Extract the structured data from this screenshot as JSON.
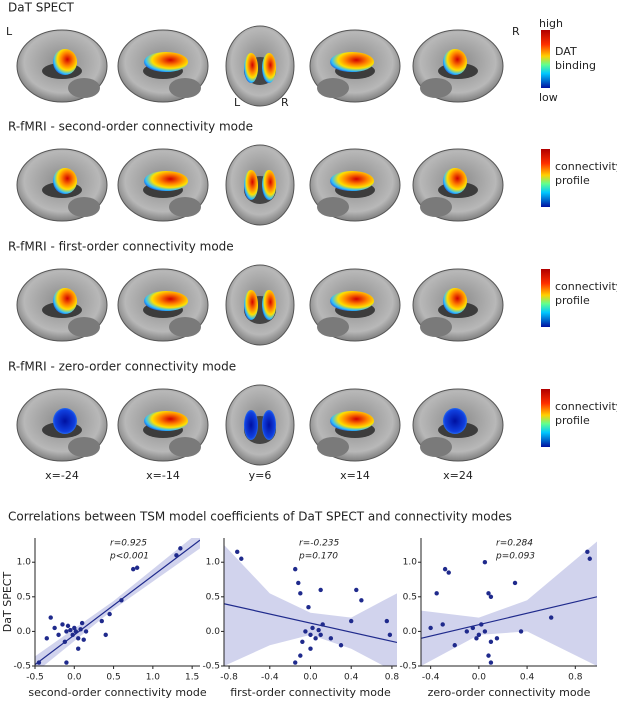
{
  "figure": {
    "rows": [
      {
        "title": "DaT SPECT",
        "colorbar": {
          "high": "high",
          "label": [
            "DAT",
            "binding"
          ],
          "low": "low"
        }
      },
      {
        "title": "R-fMRI - second-order connectivity mode",
        "colorbar": {
          "label": [
            "connectivity",
            "profile"
          ]
        }
      },
      {
        "title": "R-fMRI - first-order connectivity mode",
        "colorbar": {
          "label": [
            "connectivity",
            "profile"
          ]
        }
      },
      {
        "title": "R-fMRI - zero-order connectivity mode",
        "colorbar": {
          "label": [
            "connectivity",
            "profile"
          ]
        }
      }
    ],
    "hemisphere_labels": [
      "L",
      "R"
    ],
    "coronal_labels": [
      "L",
      "R"
    ],
    "slice_labels": [
      "x=-24",
      "x=-14",
      "y=6",
      "x=14",
      "x=24"
    ],
    "section_title": "Correlations between TSM model coefficients of DaT SPECT and connectivity modes"
  },
  "chart_data": [
    {
      "type": "scatter",
      "color": "#1f2a8c",
      "band_color": "#c5c8e8",
      "annotation": [
        "r=0.925",
        "p<0.001"
      ],
      "xlabel": "second-order connectivity mode",
      "ylabel": "DaT SPECT",
      "xlim": [
        -0.5,
        1.6
      ],
      "ylim": [
        -0.5,
        1.35
      ],
      "xticks": [
        -0.5,
        {
          "value": 0,
          "label": "0.0"
        },
        0.5,
        {
          "value": 1,
          "label": "1.0"
        },
        1.5
      ],
      "yticks": [
        -0.5,
        {
          "value": 0,
          "label": "0.0"
        },
        0.5,
        {
          "value": 1,
          "label": "1.0"
        }
      ],
      "x": [
        -0.45,
        -0.35,
        -0.25,
        -0.2,
        -0.15,
        -0.12,
        -0.1,
        -0.05,
        -0.02,
        0.0,
        0.02,
        0.05,
        0.08,
        0.1,
        0.12,
        -0.1,
        0.05,
        0.35,
        0.4,
        0.45,
        0.6,
        0.75,
        0.8,
        1.3,
        1.35,
        -0.3,
        0.15,
        -0.08
      ],
      "y": [
        -0.45,
        -0.1,
        0.05,
        -0.05,
        0.1,
        -0.15,
        0.0,
        0.02,
        -0.05,
        0.05,
        0.0,
        -0.1,
        0.03,
        0.12,
        -0.12,
        -0.45,
        -0.25,
        0.15,
        -0.05,
        0.25,
        0.45,
        0.9,
        0.92,
        1.1,
        1.2,
        0.2,
        0.0,
        0.08
      ],
      "fit": {
        "x": [
          -0.5,
          1.6
        ],
        "y": [
          -0.48,
          1.32
        ]
      },
      "band": {
        "x": [
          -0.5,
          0.5,
          1.6
        ],
        "lower": [
          -0.6,
          0.32,
          1.2
        ],
        "upper": [
          -0.36,
          0.44,
          1.45
        ]
      }
    },
    {
      "type": "scatter",
      "color": "#1f2a8c",
      "band_color": "#c5c8e8",
      "annotation": [
        "r=-0.235",
        "p=0.170"
      ],
      "xlabel": "first-order connectivity mode",
      "xlim": [
        -0.85,
        0.85
      ],
      "ylim": [
        -0.5,
        1.35
      ],
      "xticks": [
        -0.8,
        -0.4,
        {
          "value": 0,
          "label": "0.0"
        },
        0.4,
        0.8
      ],
      "yticks": [
        -0.5,
        {
          "value": 0,
          "label": "0.0"
        },
        0.5,
        {
          "value": 1,
          "label": "1.0"
        }
      ],
      "x": [
        -0.72,
        -0.68,
        -0.15,
        -0.12,
        -0.1,
        0.1,
        0.45,
        0.5,
        -0.02,
        -0.05,
        0.0,
        0.02,
        0.05,
        0.08,
        0.1,
        0.12,
        -0.08,
        0.0,
        -0.15,
        -0.1,
        0.2,
        0.4,
        0.75,
        0.78,
        0.3
      ],
      "y": [
        1.15,
        1.05,
        0.9,
        0.7,
        0.55,
        0.6,
        0.6,
        0.45,
        0.35,
        0.0,
        -0.05,
        0.05,
        -0.1,
        0.02,
        -0.05,
        0.1,
        -0.15,
        -0.25,
        -0.45,
        -0.35,
        -0.1,
        0.15,
        0.15,
        -0.05,
        -0.2
      ],
      "fit": {
        "x": [
          -0.85,
          0.85
        ],
        "y": [
          0.4,
          -0.16
        ]
      },
      "band": {
        "x": [
          -0.85,
          -0.4,
          0.0,
          0.4,
          0.85
        ],
        "lower": [
          -0.5,
          -0.2,
          -0.05,
          -0.25,
          -0.6
        ],
        "upper": [
          1.25,
          0.55,
          0.27,
          0.2,
          0.55
        ]
      }
    },
    {
      "type": "scatter",
      "color": "#1f2a8c",
      "band_color": "#c5c8e8",
      "annotation": [
        "r=0.284",
        "p=0.093"
      ],
      "xlabel": "zero-order connectivity mode",
      "xlim": [
        -0.48,
        0.98
      ],
      "ylim": [
        -0.5,
        1.35
      ],
      "xticks": [
        -0.4,
        {
          "value": 0,
          "label": "0.0"
        },
        0.4,
        0.8
      ],
      "yticks": [
        -0.5,
        {
          "value": 0,
          "label": "0.0"
        },
        0.5,
        {
          "value": 1,
          "label": "1.0"
        }
      ],
      "x": [
        -0.28,
        -0.25,
        -0.35,
        0.05,
        0.08,
        0.1,
        0.3,
        0.9,
        0.92,
        -0.1,
        -0.05,
        0.0,
        0.02,
        0.05,
        -0.02,
        0.1,
        0.08,
        0.1,
        -0.2,
        -0.4,
        -0.3,
        0.6,
        0.35,
        0.15
      ],
      "y": [
        0.9,
        0.85,
        0.55,
        1.0,
        0.55,
        0.5,
        0.7,
        1.15,
        1.05,
        0.0,
        0.05,
        -0.05,
        0.1,
        0.0,
        -0.1,
        -0.15,
        -0.35,
        -0.45,
        -0.2,
        0.05,
        0.1,
        0.2,
        0.0,
        -0.1
      ],
      "fit": {
        "x": [
          -0.48,
          0.98
        ],
        "y": [
          -0.1,
          0.5
        ]
      },
      "band": {
        "x": [
          -0.48,
          0.0,
          0.4,
          0.98
        ],
        "lower": [
          -0.5,
          -0.05,
          0.0,
          -0.5
        ],
        "upper": [
          0.3,
          0.2,
          0.45,
          1.3
        ]
      }
    }
  ]
}
